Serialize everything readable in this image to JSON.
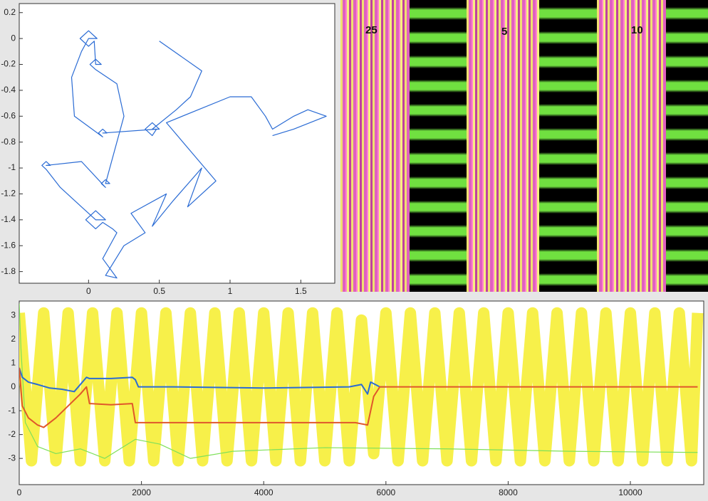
{
  "chart_data": [
    {
      "type": "line",
      "color": "#2a6bd4",
      "xlim": [
        -0.49,
        1.74
      ],
      "ylim": [
        -1.89,
        0.27
      ],
      "xticks": [
        0,
        0.5,
        1,
        1.5
      ],
      "yticks": [
        0.2,
        0,
        -0.2,
        -0.4,
        -0.6,
        -0.8,
        -1,
        -1.2,
        -1.4,
        -1.6,
        -1.8
      ],
      "x": [
        0.5,
        0.8,
        0.72,
        0.62,
        0.45,
        0.5,
        0.45,
        0.4,
        0.45,
        0.48,
        0.1,
        0.13,
        0.1,
        0.07,
        0.1,
        -0.1,
        -0.12,
        -0.05,
        0,
        0.06,
        0,
        -0.06,
        0,
        0.04,
        0.05,
        0.09,
        0.05,
        0.01,
        0.05,
        0.2,
        0.25,
        0.12,
        0.15,
        0.12,
        0.09,
        0.12,
        -0.05,
        -0.3,
        -0.27,
        -0.3,
        -0.33,
        -0.3,
        -0.2,
        -0.05,
        0.05,
        0.12,
        0.05,
        -0.02,
        0.05,
        0.1,
        0.17,
        0.2,
        0.15,
        0.1,
        0.2,
        0.12,
        0.25,
        0.4,
        0.3,
        0.55,
        0.45,
        0.6,
        0.8,
        0.7,
        0.9,
        0.55,
        1.0,
        1.15,
        1.25,
        1.3,
        1.45,
        1.55,
        1.68,
        1.45,
        1.3
      ],
      "values": [
        -0.02,
        -0.25,
        -0.45,
        -0.55,
        -0.7,
        -0.7,
        -0.65,
        -0.7,
        -0.75,
        -0.7,
        -0.73,
        -0.73,
        -0.7,
        -0.73,
        -0.76,
        -0.6,
        -0.3,
        -0.1,
        0,
        0,
        0.06,
        0,
        -0.06,
        -0.02,
        -0.2,
        -0.2,
        -0.16,
        -0.2,
        -0.24,
        -0.35,
        -0.6,
        -1.12,
        -1.12,
        -1.09,
        -1.12,
        -1.15,
        -0.95,
        -0.98,
        -0.98,
        -0.95,
        -0.98,
        -1.01,
        -1.15,
        -1.3,
        -1.4,
        -1.4,
        -1.33,
        -1.4,
        -1.47,
        -1.42,
        -1.47,
        -1.5,
        -1.6,
        -1.7,
        -1.85,
        -1.83,
        -1.6,
        -1.5,
        -1.35,
        -1.2,
        -1.45,
        -1.25,
        -1.0,
        -1.3,
        -1.1,
        -0.65,
        -0.45,
        -0.45,
        -0.6,
        -0.7,
        -0.6,
        -0.55,
        -0.6,
        -0.7,
        -0.75
      ]
    },
    {
      "type": "line",
      "xlim": [
        0,
        11200
      ],
      "ylim": [
        -4.1,
        3.6
      ],
      "xticks": [
        0,
        2000,
        4000,
        6000,
        8000,
        10000
      ],
      "yticks": [
        3,
        2,
        1,
        0,
        -1,
        -2,
        -3
      ],
      "series": [
        {
          "color": "#f7f04a",
          "x": [
            0,
            200,
            400,
            600,
            800,
            1000,
            1200,
            1400,
            1600,
            1800,
            2000,
            2200,
            2400,
            2600,
            2800,
            3000,
            3200,
            3400,
            3600,
            3800,
            4000,
            4200,
            4400,
            4600,
            4800,
            5000,
            5200,
            5400,
            5600,
            5800,
            6000,
            6200,
            6400,
            6600,
            6800,
            7000,
            7200,
            7400,
            7600,
            7800,
            8000,
            8200,
            8400,
            8600,
            8800,
            9000,
            9200,
            9400,
            9600,
            9800,
            10000,
            10200,
            10400,
            10600,
            10800,
            11000,
            11100
          ],
          "values": [
            3.1,
            -3.1,
            3.1,
            -3.1,
            3.1,
            -3.1,
            3.1,
            -3.1,
            3.1,
            -3.1,
            3.1,
            -3.1,
            3.1,
            -3.1,
            3.1,
            -3.1,
            3.1,
            -3.1,
            3.1,
            -3.1,
            3.1,
            -3.1,
            3.1,
            -3.1,
            3.1,
            -3.1,
            3.1,
            -3.1,
            2.8,
            -2.8,
            3.1,
            -3.1,
            3.1,
            -3.1,
            3.1,
            -3.1,
            3.1,
            -3.1,
            3.1,
            -3.1,
            3.1,
            -3.1,
            3.1,
            -3.1,
            3.1,
            -3.1,
            3.1,
            -3.1,
            3.1,
            -3.1,
            3.1,
            -3.1,
            3.1,
            -3.1,
            3.1,
            -3.1,
            3.1
          ]
        },
        {
          "color": "#7ee05a",
          "x": [
            0,
            30,
            100,
            300,
            600,
            1000,
            1400,
            1900,
            2300,
            2800,
            3500,
            5000,
            7000,
            9000,
            11100
          ],
          "values": [
            3.5,
            1.5,
            -1.5,
            -2.5,
            -2.8,
            -2.6,
            -3,
            -2.2,
            -2.4,
            -3,
            -2.7,
            -2.55,
            -2.6,
            -2.7,
            -2.75
          ]
        },
        {
          "color": "#2a6bd4",
          "x": [
            0,
            50,
            150,
            300,
            500,
            700,
            900,
            1100,
            1150,
            1500,
            1850,
            1900,
            1950,
            2500,
            4000,
            5400,
            5600,
            5700,
            5750,
            5900,
            6000
          ],
          "values": [
            0.8,
            0.4,
            0.2,
            0.1,
            -0.05,
            -0.1,
            -0.2,
            0.4,
            0.35,
            0.35,
            0.4,
            0.3,
            0,
            0,
            -0.05,
            0,
            0.1,
            -0.3,
            0.2,
            0,
            0
          ]
        },
        {
          "color": "#e0572a",
          "x": [
            0,
            50,
            150,
            300,
            400,
            600,
            800,
            1000,
            1100,
            1150,
            1500,
            1850,
            1900,
            2000,
            4000,
            5500,
            5700,
            5800,
            5900,
            7100,
            11100
          ],
          "values": [
            0.8,
            -0.8,
            -1.3,
            -1.6,
            -1.7,
            -1.3,
            -0.8,
            -0.3,
            0,
            -0.7,
            -0.75,
            -0.7,
            -1.5,
            -1.5,
            -1.5,
            -1.5,
            -1.6,
            -0.4,
            0,
            0,
            0
          ]
        }
      ]
    }
  ],
  "pattern": {
    "labels": [
      "25",
      "5",
      "10"
    ]
  }
}
